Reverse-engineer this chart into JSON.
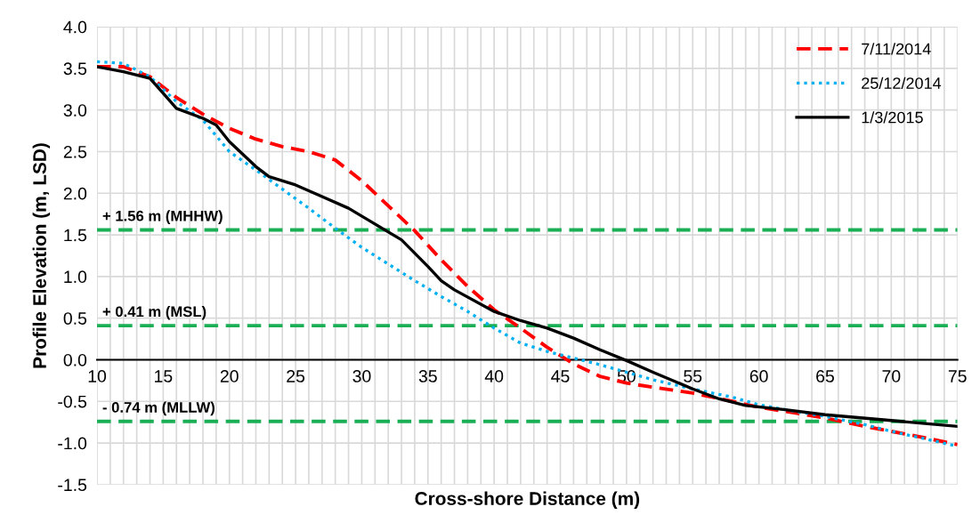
{
  "chart_data": {
    "type": "line",
    "xlabel": "Cross-shore Distance (m)",
    "ylabel": "Profile Elevation (m, LSD)",
    "xlim": [
      10,
      75
    ],
    "ylim": [
      -1.5,
      4.0
    ],
    "xticks": [
      10,
      {
        "value": 11,
        "label": null
      },
      {
        "value": 12,
        "label": null
      },
      {
        "value": 13,
        "label": null
      },
      {
        "value": 14,
        "label": null
      },
      15,
      {
        "value": 16,
        "label": null
      },
      {
        "value": 17,
        "label": null
      },
      {
        "value": 18,
        "label": null
      },
      {
        "value": 19,
        "label": null
      },
      20,
      {
        "value": 21,
        "label": null
      },
      {
        "value": 22,
        "label": null
      },
      {
        "value": 23,
        "label": null
      },
      {
        "value": 24,
        "label": null
      },
      25,
      {
        "value": 26,
        "label": null
      },
      {
        "value": 27,
        "label": null
      },
      {
        "value": 28,
        "label": null
      },
      {
        "value": 29,
        "label": null
      },
      30,
      {
        "value": 31,
        "label": null
      },
      {
        "value": 32,
        "label": null
      },
      {
        "value": 33,
        "label": null
      },
      {
        "value": 34,
        "label": null
      },
      35,
      {
        "value": 36,
        "label": null
      },
      {
        "value": 37,
        "label": null
      },
      {
        "value": 38,
        "label": null
      },
      {
        "value": 39,
        "label": null
      },
      40,
      {
        "value": 41,
        "label": null
      },
      {
        "value": 42,
        "label": null
      },
      {
        "value": 43,
        "label": null
      },
      {
        "value": 44,
        "label": null
      },
      45,
      {
        "value": 46,
        "label": null
      },
      {
        "value": 47,
        "label": null
      },
      {
        "value": 48,
        "label": null
      },
      {
        "value": 49,
        "label": null
      },
      50,
      {
        "value": 51,
        "label": null
      },
      {
        "value": 52,
        "label": null
      },
      {
        "value": 53,
        "label": null
      },
      {
        "value": 54,
        "label": null
      },
      55,
      {
        "value": 56,
        "label": null
      },
      {
        "value": 57,
        "label": null
      },
      {
        "value": 58,
        "label": null
      },
      {
        "value": 59,
        "label": null
      },
      60,
      {
        "value": 61,
        "label": null
      },
      {
        "value": 62,
        "label": null
      },
      {
        "value": 63,
        "label": null
      },
      {
        "value": 64,
        "label": null
      },
      65,
      {
        "value": 66,
        "label": null
      },
      {
        "value": 67,
        "label": null
      },
      {
        "value": 68,
        "label": null
      },
      {
        "value": 69,
        "label": null
      },
      70,
      {
        "value": 71,
        "label": null
      },
      {
        "value": 72,
        "label": null
      },
      {
        "value": 73,
        "label": null
      },
      {
        "value": 74,
        "label": null
      },
      75
    ],
    "yticks": [
      -1.5,
      {
        "value": -1,
        "label": "-1.0"
      },
      -0.5,
      {
        "value": 0,
        "label": "0.0"
      },
      0.5,
      {
        "value": 1,
        "label": "1.0"
      },
      1.5,
      {
        "value": 2,
        "label": "2.0"
      },
      2.5,
      {
        "value": 3,
        "label": "3.0"
      },
      3.5,
      {
        "value": 4,
        "label": "4.0"
      }
    ],
    "grid": true,
    "legend": "top right",
    "marker": "none",
    "series": [
      {
        "name": "7/11/2014",
        "color": "#ff0000",
        "line_style": "dashed",
        "x": [
          10,
          12,
          14,
          16,
          18,
          20,
          22,
          24,
          26,
          28,
          30,
          32,
          34,
          36,
          38,
          40,
          42,
          44,
          46,
          48,
          50,
          52,
          55,
          58,
          60,
          62,
          65,
          68,
          70,
          72,
          75
        ],
        "values": [
          3.52,
          3.52,
          3.4,
          3.15,
          2.95,
          2.78,
          2.65,
          2.56,
          2.5,
          2.4,
          2.15,
          1.85,
          1.55,
          1.2,
          0.88,
          0.6,
          0.38,
          0.15,
          -0.05,
          -0.2,
          -0.28,
          -0.33,
          -0.4,
          -0.5,
          -0.57,
          -0.62,
          -0.7,
          -0.8,
          -0.86,
          -0.92,
          -1.02
        ]
      },
      {
        "name": "25/12/2014",
        "color": "#00b0f0",
        "line_style": "dotted",
        "x": [
          10,
          12,
          14,
          16,
          18,
          20,
          22,
          24,
          26,
          28,
          30,
          32,
          34,
          36,
          38,
          40,
          42,
          44,
          46,
          48,
          50,
          52,
          55,
          58,
          60,
          62,
          65,
          68,
          70,
          72,
          75
        ],
        "values": [
          3.58,
          3.56,
          3.4,
          3.1,
          2.88,
          2.5,
          2.28,
          2.05,
          1.82,
          1.58,
          1.35,
          1.15,
          0.95,
          0.76,
          0.58,
          0.38,
          0.2,
          0.1,
          0.02,
          -0.06,
          -0.15,
          -0.24,
          -0.35,
          -0.45,
          -0.54,
          -0.6,
          -0.68,
          -0.78,
          -0.86,
          -0.93,
          -1.04
        ]
      },
      {
        "name": "1/3/2015",
        "color": "#000000",
        "line_style": "solid",
        "x": [
          10,
          12,
          14,
          15,
          16,
          18,
          19,
          20,
          22,
          23,
          25,
          27,
          29,
          31,
          33,
          35,
          36,
          37,
          40,
          42,
          44,
          46,
          48,
          50,
          52,
          55,
          57,
          59,
          62,
          65,
          70,
          75
        ],
        "values": [
          3.52,
          3.46,
          3.38,
          3.2,
          3.02,
          2.9,
          2.82,
          2.62,
          2.32,
          2.2,
          2.1,
          1.96,
          1.82,
          1.63,
          1.44,
          1.12,
          0.95,
          0.84,
          0.58,
          0.47,
          0.38,
          0.26,
          0.12,
          -0.01,
          -0.15,
          -0.35,
          -0.47,
          -0.55,
          -0.6,
          -0.66,
          -0.73,
          -0.8
        ]
      }
    ],
    "ref_lines": [
      {
        "axis": "y",
        "value": 1.56,
        "label": "+ 1.56 m (MHHW)",
        "color": "#1aaf54",
        "line_style": "dashed"
      },
      {
        "axis": "y",
        "value": 0.41,
        "label": "+ 0.41 m (MSL)",
        "color": "#1aaf54",
        "line_style": "dashed"
      },
      {
        "axis": "y",
        "value": -0.74,
        "label": "- 0.74 m (MLLW)",
        "color": "#1aaf54",
        "line_style": "dashed"
      }
    ]
  }
}
